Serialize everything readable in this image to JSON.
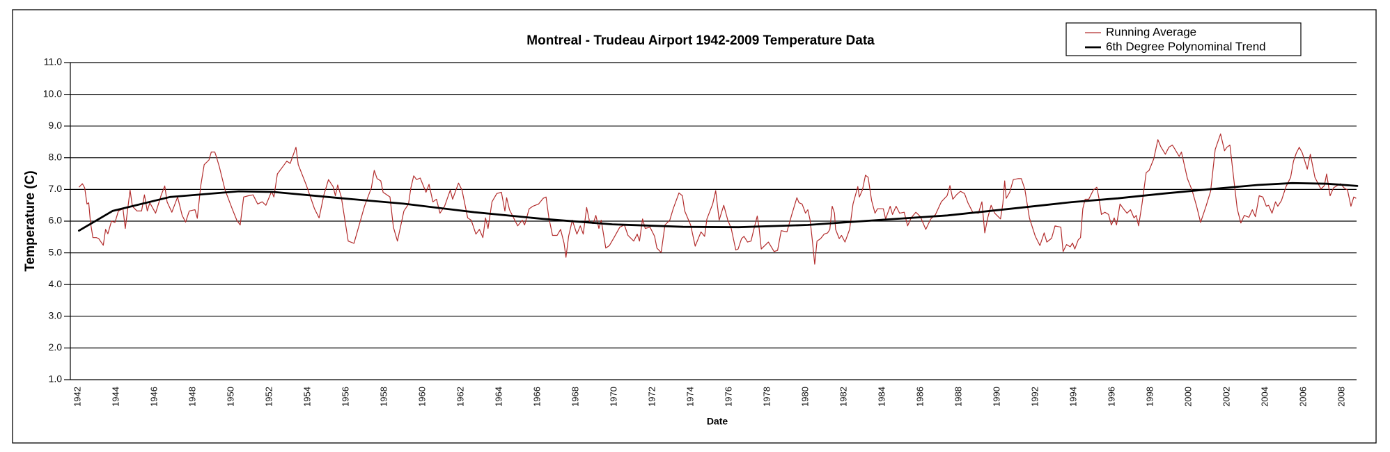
{
  "chart_data": {
    "type": "line",
    "title": "Montreal - Trudeau Airport 1942-2009 Temperature Data",
    "xlabel": "Date",
    "ylabel": "Temperature (C)",
    "xlim": [
      1941.6,
      2008.8
    ],
    "ylim": [
      1.0,
      11.0
    ],
    "y_ticks": [
      "1.0",
      "2.0",
      "3.0",
      "4.0",
      "5.0",
      "6.0",
      "7.0",
      "8.0",
      "9.0",
      "10.0",
      "11.0"
    ],
    "x_ticks": [
      "1942",
      "1944",
      "1946",
      "1948",
      "1950",
      "1952",
      "1954",
      "1956",
      "1958",
      "1960",
      "1962",
      "1964",
      "1966",
      "1968",
      "1970",
      "1972",
      "1974",
      "1976",
      "1978",
      "1980",
      "1982",
      "1984",
      "1986",
      "1988",
      "1990",
      "1992",
      "1994",
      "1996",
      "1998",
      "2000",
      "2002",
      "2004",
      "2006",
      "2008"
    ],
    "grid": "horizontal",
    "legend_position": "top-right",
    "series": [
      {
        "name": "Running Average",
        "color": "#b22c2c",
        "x": [
          1942.05,
          1942.23,
          1942.35,
          1942.47,
          1942.56,
          1942.65,
          1942.78,
          1942.96,
          1943.08,
          1943.32,
          1943.44,
          1943.56,
          1943.75,
          1943.93,
          1944.11,
          1944.35,
          1944.47,
          1944.72,
          1944.84,
          1945.08,
          1945.32,
          1945.47,
          1945.62,
          1945.75,
          1946.05,
          1946.35,
          1946.53,
          1946.65,
          1946.9,
          1947.2,
          1947.44,
          1947.62,
          1947.81,
          1948.11,
          1948.23,
          1948.41,
          1948.59,
          1948.84,
          1948.96,
          1949.14,
          1949.22,
          1949.38,
          1949.68,
          1950.05,
          1950.29,
          1950.47,
          1950.65,
          1950.9,
          1951.14,
          1951.38,
          1951.62,
          1951.81,
          1952.11,
          1952.23,
          1952.41,
          1952.72,
          1952.9,
          1953.08,
          1953.38,
          1953.5,
          1953.93,
          1954.35,
          1954.59,
          1954.84,
          1955.08,
          1955.32,
          1955.44,
          1955.56,
          1955.75,
          1956.11,
          1956.41,
          1956.65,
          1956.96,
          1957.32,
          1957.47,
          1957.62,
          1957.81,
          1957.93,
          1958.29,
          1958.47,
          1958.68,
          1959.02,
          1959.26,
          1959.38,
          1959.53,
          1959.68,
          1959.87,
          1960.17,
          1960.33,
          1960.53,
          1960.72,
          1960.9,
          1961.14,
          1961.44,
          1961.56,
          1961.87,
          1962.05,
          1962.35,
          1962.53,
          1962.78,
          1962.96,
          1963.14,
          1963.28,
          1963.41,
          1963.62,
          1963.87,
          1964.11,
          1964.29,
          1964.38,
          1964.53,
          1964.96,
          1965.2,
          1965.32,
          1965.56,
          1965.75,
          1966.05,
          1966.29,
          1966.44,
          1966.59,
          1966.78,
          1967.02,
          1967.2,
          1967.38,
          1967.48,
          1967.62,
          1967.81,
          1968.05,
          1968.23,
          1968.38,
          1968.56,
          1968.72,
          1968.9,
          1969.04,
          1969.2,
          1969.32,
          1969.56,
          1969.75,
          1969.99,
          1970.29,
          1970.53,
          1970.72,
          1971.02,
          1971.2,
          1971.32,
          1971.48,
          1971.62,
          1971.87,
          1972.11,
          1972.23,
          1972.45,
          1972.65,
          1972.9,
          1973.08,
          1973.38,
          1973.56,
          1973.68,
          1973.99,
          1974.23,
          1974.53,
          1974.72,
          1974.84,
          1975.14,
          1975.3,
          1975.48,
          1975.72,
          1975.93,
          1976.11,
          1976.35,
          1976.47,
          1976.65,
          1976.78,
          1976.96,
          1977.14,
          1977.32,
          1977.47,
          1977.56,
          1977.68,
          1978.05,
          1978.35,
          1978.53,
          1978.72,
          1979.02,
          1979.26,
          1979.54,
          1979.65,
          1979.81,
          1979.99,
          1980.11,
          1980.23,
          1980.35,
          1980.47,
          1980.59,
          1980.78,
          1980.96,
          1981.14,
          1981.26,
          1981.38,
          1981.5,
          1981.56,
          1981.75,
          1981.87,
          1982.05,
          1982.29,
          1982.47,
          1982.72,
          1982.8,
          1982.96,
          1983.12,
          1983.26,
          1983.44,
          1983.62,
          1983.75,
          1984.05,
          1984.17,
          1984.41,
          1984.53,
          1984.72,
          1984.9,
          1985.14,
          1985.32,
          1985.5,
          1985.75,
          1985.99,
          1986.27,
          1986.53,
          1986.78,
          1987.08,
          1987.38,
          1987.53,
          1987.68,
          1987.87,
          1988.08,
          1988.29,
          1988.47,
          1988.72,
          1989.02,
          1989.2,
          1989.35,
          1989.5,
          1989.68,
          1989.87,
          1990.17,
          1990.29,
          1990.39,
          1990.47,
          1990.65,
          1990.84,
          1991.08,
          1991.26,
          1991.44,
          1991.68,
          1991.99,
          1992.23,
          1992.45,
          1992.59,
          1992.84,
          1993.02,
          1993.32,
          1993.44,
          1993.62,
          1993.81,
          1993.93,
          1994.05,
          1994.23,
          1994.35,
          1994.47,
          1994.59,
          1994.78,
          1995.02,
          1995.2,
          1995.32,
          1995.44,
          1995.62,
          1995.81,
          1995.96,
          1996.11,
          1996.23,
          1996.41,
          1996.59,
          1996.78,
          1996.96,
          1997.14,
          1997.26,
          1997.38,
          1997.56,
          1997.78,
          1997.93,
          1998.17,
          1998.39,
          1998.53,
          1998.78,
          1998.96,
          1999.14,
          1999.26,
          1999.5,
          1999.62,
          1999.93,
          2000.17,
          2000.41,
          2000.62,
          2000.9,
          2001.14,
          2001.38,
          2001.66,
          2001.87,
          2001.99,
          2002.15,
          2002.35,
          2002.53,
          2002.72,
          2002.9,
          2003.14,
          2003.32,
          2003.48,
          2003.68,
          2003.87,
          2004.05,
          2004.17,
          2004.35,
          2004.53,
          2004.65,
          2004.84,
          2005.08,
          2005.32,
          2005.47,
          2005.62,
          2005.77,
          2005.93,
          2006.19,
          2006.35,
          2006.59,
          2006.9,
          2007.08,
          2007.2,
          2007.38,
          2007.56,
          2007.75,
          2007.93,
          2008.11,
          2008.29,
          2008.47,
          2008.62,
          2008.74
        ],
        "y": [
          7.07,
          7.18,
          7.05,
          6.54,
          6.58,
          5.96,
          5.48,
          5.48,
          5.45,
          5.24,
          5.74,
          5.6,
          6.0,
          5.96,
          6.32,
          6.39,
          5.77,
          6.98,
          6.47,
          6.32,
          6.32,
          6.83,
          6.32,
          6.58,
          6.25,
          6.83,
          7.11,
          6.61,
          6.28,
          6.76,
          6.18,
          5.97,
          6.32,
          6.36,
          6.09,
          7.12,
          7.78,
          7.93,
          8.18,
          8.18,
          8.04,
          7.71,
          6.98,
          6.39,
          6.03,
          5.88,
          6.76,
          6.8,
          6.83,
          6.54,
          6.61,
          6.5,
          6.94,
          6.76,
          7.49,
          7.74,
          7.89,
          7.82,
          8.33,
          7.78,
          7.12,
          6.39,
          6.1,
          6.83,
          7.31,
          7.09,
          6.8,
          7.14,
          6.76,
          5.37,
          5.3,
          5.81,
          6.47,
          7.05,
          7.6,
          7.34,
          7.27,
          6.91,
          6.76,
          5.81,
          5.37,
          6.32,
          6.54,
          7.05,
          7.43,
          7.31,
          7.36,
          6.91,
          7.16,
          6.61,
          6.69,
          6.25,
          6.47,
          6.98,
          6.69,
          7.2,
          6.98,
          6.1,
          6.03,
          5.59,
          5.74,
          5.48,
          6.1,
          5.77,
          6.61,
          6.87,
          6.91,
          6.32,
          6.74,
          6.36,
          5.85,
          6.03,
          5.88,
          6.39,
          6.47,
          6.54,
          6.72,
          6.76,
          6.1,
          5.55,
          5.55,
          5.74,
          5.3,
          4.86,
          5.52,
          6.03,
          5.59,
          5.85,
          5.59,
          6.43,
          5.96,
          5.92,
          6.18,
          5.77,
          6.03,
          5.15,
          5.23,
          5.48,
          5.81,
          5.88,
          5.55,
          5.37,
          5.59,
          5.37,
          6.07,
          5.77,
          5.81,
          5.52,
          5.15,
          5.01,
          5.88,
          6.03,
          6.39,
          6.89,
          6.8,
          6.32,
          5.88,
          5.21,
          5.66,
          5.52,
          6.07,
          6.54,
          6.96,
          6.03,
          6.5,
          6.03,
          5.77,
          5.09,
          5.12,
          5.45,
          5.52,
          5.34,
          5.37,
          5.81,
          6.16,
          5.81,
          5.12,
          5.34,
          5.04,
          5.08,
          5.7,
          5.66,
          6.18,
          6.74,
          6.58,
          6.54,
          6.25,
          6.36,
          6.03,
          5.37,
          4.64,
          5.37,
          5.45,
          5.59,
          5.63,
          5.74,
          6.47,
          6.25,
          5.74,
          5.45,
          5.55,
          5.34,
          5.74,
          6.54,
          7.09,
          6.76,
          6.98,
          7.45,
          7.38,
          6.65,
          6.25,
          6.39,
          6.39,
          6.07,
          6.47,
          6.21,
          6.47,
          6.25,
          6.28,
          5.85,
          6.1,
          6.28,
          6.14,
          5.74,
          6.07,
          6.21,
          6.61,
          6.8,
          7.12,
          6.69,
          6.83,
          6.94,
          6.87,
          6.58,
          6.28,
          6.25,
          6.61,
          5.63,
          6.1,
          6.5,
          6.25,
          6.07,
          6.54,
          7.27,
          6.72,
          6.91,
          7.31,
          7.34,
          7.34,
          7.01,
          6.1,
          5.52,
          5.23,
          5.63,
          5.34,
          5.46,
          5.85,
          5.81,
          5.04,
          5.26,
          5.19,
          5.31,
          5.12,
          5.41,
          5.48,
          6.39,
          6.69,
          6.69,
          6.98,
          7.07,
          6.69,
          6.21,
          6.28,
          6.21,
          5.88,
          6.1,
          5.88,
          6.54,
          6.39,
          6.25,
          6.36,
          6.1,
          6.18,
          5.85,
          6.54,
          7.53,
          7.6,
          7.96,
          8.57,
          8.36,
          8.11,
          8.33,
          8.4,
          8.29,
          8.04,
          8.18,
          7.34,
          6.98,
          6.47,
          5.96,
          6.47,
          6.94,
          8.26,
          8.75,
          8.22,
          8.33,
          8.4,
          7.34,
          6.39,
          5.94,
          6.18,
          6.12,
          6.36,
          6.14,
          6.8,
          6.76,
          6.47,
          6.5,
          6.25,
          6.61,
          6.47,
          6.65,
          7.09,
          7.38,
          7.89,
          8.15,
          8.33,
          8.15,
          7.64,
          8.11,
          7.38,
          7.01,
          7.12,
          7.49,
          6.8,
          7.05,
          7.12,
          7.18,
          7.05,
          6.98,
          6.47,
          6.76,
          6.72
        ]
      },
      {
        "name": "6th Degree Polynominal Trend",
        "color": "#000000",
        "x": [
          1942.05,
          1943.8,
          1946.8,
          1950.4,
          1952.2,
          1955.8,
          1959.0,
          1962.7,
          1966.3,
          1969.9,
          1973.6,
          1976.5,
          1980.1,
          1983.7,
          1987.4,
          1991.0,
          1993.9,
          1996.3,
          1998.7,
          2001.2,
          2003.6,
          2005.4,
          2007.2,
          2008.8
        ],
        "y": [
          5.7,
          6.32,
          6.76,
          6.94,
          6.92,
          6.72,
          6.55,
          6.28,
          6.07,
          5.9,
          5.82,
          5.81,
          5.88,
          6.03,
          6.18,
          6.41,
          6.6,
          6.72,
          6.87,
          7.01,
          7.14,
          7.2,
          7.18,
          7.11
        ]
      }
    ]
  }
}
